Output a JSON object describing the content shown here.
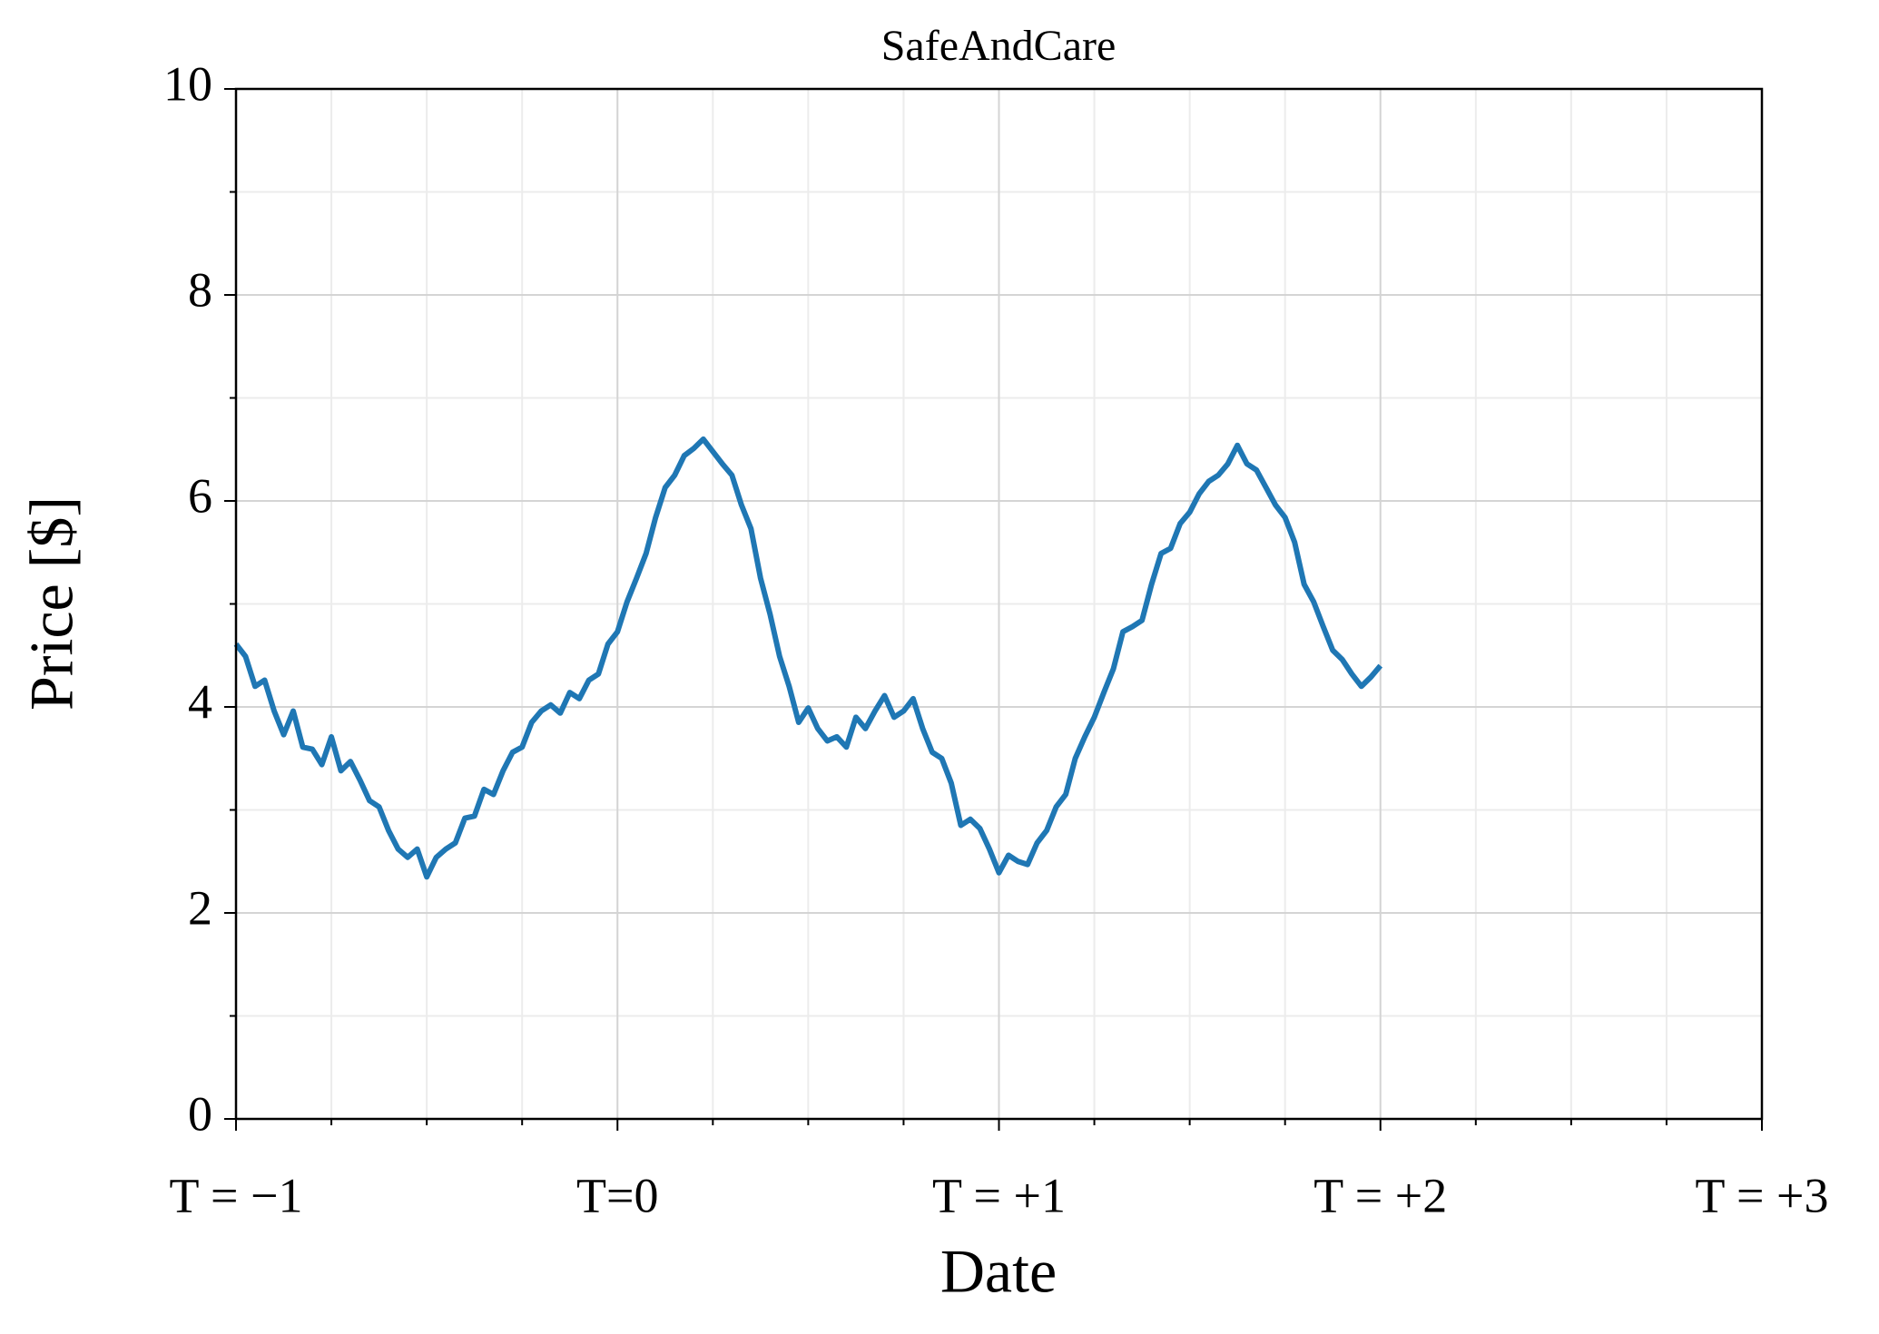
{
  "chart_data": {
    "type": "line",
    "title": "SafeAndCare",
    "xlabel": "Date",
    "ylabel": "Price [$]",
    "x": [
      -1,
      -0.975,
      -0.95,
      -0.925,
      -0.9,
      -0.875,
      -0.85,
      -0.825,
      -0.8,
      -0.775,
      -0.75,
      -0.725,
      -0.7,
      -0.675,
      -0.65,
      -0.625,
      -0.6,
      -0.575,
      -0.55,
      -0.525,
      -0.5,
      -0.475,
      -0.45,
      -0.425,
      -0.4,
      -0.375,
      -0.35,
      -0.325,
      -0.3,
      -0.275,
      -0.25,
      -0.225,
      -0.2,
      -0.175,
      -0.15,
      -0.125,
      -0.1,
      -0.075,
      -0.05,
      -0.025,
      0,
      0.025,
      0.05,
      0.075,
      0.1,
      0.125,
      0.15,
      0.175,
      0.2,
      0.225,
      0.25,
      0.275,
      0.3,
      0.325,
      0.35,
      0.375,
      0.4,
      0.425,
      0.45,
      0.475,
      0.5,
      0.525,
      0.55,
      0.575,
      0.6,
      0.625,
      0.65,
      0.675,
      0.7,
      0.725,
      0.75,
      0.775,
      0.8,
      0.825,
      0.85,
      0.875,
      0.9,
      0.925,
      0.95,
      0.975,
      1,
      1.025,
      1.05,
      1.075,
      1.1,
      1.125,
      1.15,
      1.175,
      1.2,
      1.225,
      1.25,
      1.275,
      1.3,
      1.325,
      1.35,
      1.375,
      1.4,
      1.425,
      1.45,
      1.475,
      1.5,
      1.525,
      1.55,
      1.575,
      1.6,
      1.625,
      1.65,
      1.675,
      1.7,
      1.725,
      1.75,
      1.775,
      1.8,
      1.825,
      1.85,
      1.875,
      1.9,
      1.925,
      1.95,
      1.975,
      2
    ],
    "series": [
      {
        "color": "#1f77b4",
        "values": [
          4.61,
          4.49,
          4.2,
          4.26,
          3.96,
          3.73,
          3.96,
          3.61,
          3.59,
          3.44,
          3.71,
          3.38,
          3.47,
          3.29,
          3.09,
          3.03,
          2.8,
          2.62,
          2.54,
          2.62,
          2.35,
          2.54,
          2.62,
          2.68,
          2.92,
          2.94,
          3.2,
          3.15,
          3.38,
          3.56,
          3.61,
          3.85,
          3.96,
          4.02,
          3.94,
          4.14,
          4.08,
          4.26,
          4.32,
          4.61,
          4.73,
          5.02,
          5.25,
          5.49,
          5.84,
          6.13,
          6.25,
          6.44,
          6.51,
          6.6,
          6.48,
          6.36,
          6.25,
          5.96,
          5.73,
          5.25,
          4.9,
          4.49,
          4.2,
          3.85,
          3.99,
          3.79,
          3.67,
          3.71,
          3.61,
          3.9,
          3.79,
          3.96,
          4.11,
          3.9,
          3.96,
          4.08,
          3.79,
          3.56,
          3.5,
          3.26,
          2.85,
          2.91,
          2.82,
          2.62,
          2.39,
          2.56,
          2.5,
          2.47,
          2.68,
          2.8,
          3.03,
          3.15,
          3.5,
          3.71,
          3.9,
          4.14,
          4.37,
          4.73,
          4.78,
          4.84,
          5.19,
          5.49,
          5.54,
          5.78,
          5.89,
          6.07,
          6.19,
          6.25,
          6.36,
          6.54,
          6.36,
          6.3,
          6.13,
          5.96,
          5.84,
          5.6,
          5.19,
          5.02,
          4.78,
          4.55,
          4.46,
          4.32,
          4.2,
          4.29,
          4.4
        ]
      }
    ],
    "xlim": [
      -1,
      3
    ],
    "ylim": [
      0,
      10
    ],
    "xticks": [
      {
        "value": -1,
        "label": "T = −1"
      },
      {
        "value": 0,
        "label": "T=0"
      },
      {
        "value": 1,
        "label": "T = +1"
      },
      {
        "value": 2,
        "label": "T = +2"
      },
      {
        "value": 3,
        "label": "T = +3"
      }
    ],
    "yticks": [
      0,
      2,
      4,
      6,
      8,
      10
    ],
    "xminorticks": [
      -0.75,
      -0.5,
      -0.25,
      0.25,
      0.5,
      0.75,
      1.25,
      1.5,
      1.75,
      2.25,
      2.5,
      2.75
    ],
    "yminorticks": [
      1,
      3,
      5,
      7,
      9
    ],
    "grid": true
  }
}
